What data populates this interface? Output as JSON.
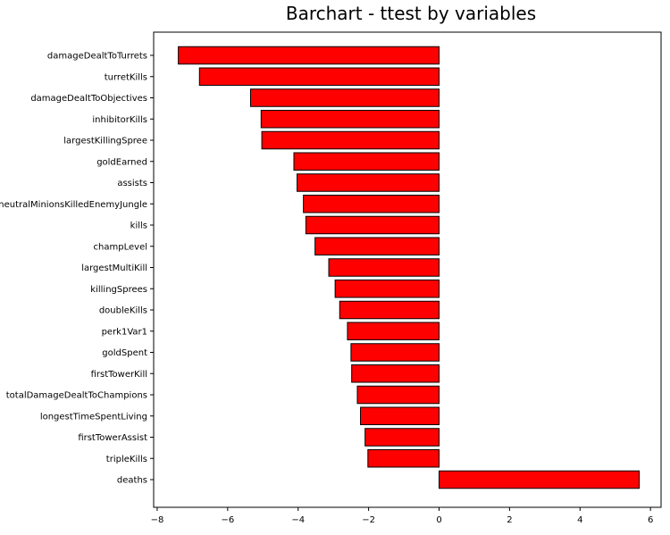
{
  "chart_data": {
    "type": "bar",
    "orientation": "horizontal",
    "title": "Barchart - ttest by variables",
    "xlabel": "",
    "ylabel": "",
    "xlim": [
      -8.1,
      6.3
    ],
    "x_ticks": [
      -8,
      -6,
      -4,
      -2,
      0,
      2,
      4,
      6
    ],
    "x_tick_labels": [
      "−8",
      "−6",
      "−4",
      "−2",
      "0",
      "2",
      "4",
      "6"
    ],
    "grid": false,
    "legend": "none",
    "bar_color": "#ff0000",
    "bar_edge_color": "#000000",
    "categories": [
      "damageDealtToTurrets",
      "turretKills",
      "damageDealtToObjectives",
      "inhibitorKills",
      "largestKillingSpree",
      "goldEarned",
      "assists",
      "neutralMinionsKilledEnemyJungle",
      "kills",
      "champLevel",
      "largestMultiKill",
      "killingSprees",
      "doubleKills",
      "perk1Var1",
      "goldSpent",
      "firstTowerKill",
      "totalDamageDealtToChampions",
      "longestTimeSpentLiving",
      "firstTowerAssist",
      "tripleKills",
      "deaths"
    ],
    "values": [
      -7.4,
      -6.8,
      -5.35,
      -5.05,
      -5.03,
      -4.12,
      -4.03,
      -3.85,
      -3.78,
      -3.52,
      -3.13,
      -2.95,
      -2.82,
      -2.6,
      -2.5,
      -2.48,
      -2.32,
      -2.23,
      -2.1,
      -2.02,
      5.68
    ]
  }
}
